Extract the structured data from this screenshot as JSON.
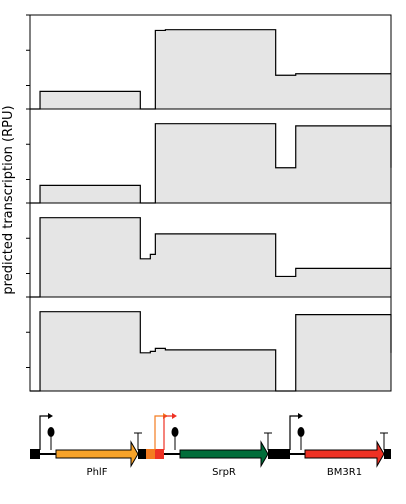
{
  "chart_data": {
    "type": "area",
    "ylabel": "predicted transcription (RPU)",
    "x": [
      0,
      1,
      2,
      3,
      4,
      5,
      6,
      7,
      8,
      9,
      10,
      11,
      12,
      13,
      14,
      15,
      16,
      17,
      18,
      19,
      20,
      21,
      22,
      23,
      24,
      25,
      26,
      27,
      28,
      29,
      30,
      31,
      32,
      33,
      34,
      35,
      36,
      37,
      38,
      39,
      40,
      41,
      42,
      43,
      44,
      45,
      46,
      47,
      48,
      49,
      50,
      51,
      52,
      53,
      54,
      55,
      56,
      57,
      58,
      59,
      60,
      61,
      62,
      63,
      64,
      65,
      66,
      67,
      68,
      69,
      70,
      71,
      72
    ],
    "series": [
      {
        "values": [
          0,
          0,
          0.24,
          0.24,
          0.24,
          0.24,
          0.24,
          0.24,
          0.24,
          0.24,
          0.24,
          0.24,
          0.24,
          0.24,
          0.24,
          0.24,
          0.24,
          0.24,
          0.24,
          0.24,
          0.24,
          0.24,
          0,
          0,
          0,
          1.07,
          1.07,
          1.08,
          1.08,
          1.08,
          1.08,
          1.08,
          1.08,
          1.08,
          1.08,
          1.08,
          1.08,
          1.08,
          1.08,
          1.08,
          1.08,
          1.08,
          1.08,
          1.08,
          1.08,
          1.08,
          1.08,
          1.08,
          1.08,
          0.46,
          0.46,
          0.46,
          0.46,
          0.48,
          0.48,
          0.48,
          0.48,
          0.48,
          0.48,
          0.48,
          0.48,
          0.48,
          0.48,
          0.48,
          0.48,
          0.48,
          0.48,
          0.48,
          0.48,
          0.48,
          0.48,
          0.48,
          0.48
        ]
      },
      {
        "values": [
          0,
          0,
          0.24,
          0.24,
          0.24,
          0.24,
          0.24,
          0.24,
          0.24,
          0.24,
          0.24,
          0.24,
          0.24,
          0.24,
          0.24,
          0.24,
          0.24,
          0.24,
          0.24,
          0.24,
          0.24,
          0.24,
          0,
          0,
          0,
          1.08,
          1.08,
          1.08,
          1.08,
          1.08,
          1.08,
          1.08,
          1.08,
          1.08,
          1.08,
          1.08,
          1.08,
          1.08,
          1.08,
          1.08,
          1.08,
          1.08,
          1.08,
          1.08,
          1.08,
          1.08,
          1.08,
          1.08,
          1.08,
          0.48,
          0.48,
          0.48,
          0.48,
          1.05,
          1.05,
          1.05,
          1.05,
          1.05,
          1.05,
          1.05,
          1.05,
          1.05,
          1.05,
          1.05,
          1.05,
          1.05,
          1.05,
          1.05,
          1.05,
          1.05,
          1.05,
          1.05,
          0.48
        ]
      },
      {
        "values": [
          0,
          0,
          1.08,
          1.08,
          1.08,
          1.08,
          1.08,
          1.08,
          1.08,
          1.08,
          1.08,
          1.08,
          1.08,
          1.08,
          1.08,
          1.08,
          1.08,
          1.08,
          1.08,
          1.08,
          1.08,
          1.08,
          0.52,
          0.52,
          0.58,
          0.86,
          0.86,
          0.86,
          0.86,
          0.86,
          0.86,
          0.86,
          0.86,
          0.86,
          0.86,
          0.86,
          0.86,
          0.86,
          0.86,
          0.86,
          0.86,
          0.86,
          0.86,
          0.86,
          0.86,
          0.86,
          0.86,
          0.86,
          0.86,
          0.28,
          0.28,
          0.28,
          0.28,
          0.39,
          0.39,
          0.39,
          0.39,
          0.39,
          0.39,
          0.39,
          0.39,
          0.39,
          0.39,
          0.39,
          0.39,
          0.39,
          0.39,
          0.39,
          0.39,
          0.39,
          0.39,
          0.39,
          0.39
        ]
      },
      {
        "values": [
          0,
          0,
          1.08,
          1.08,
          1.08,
          1.08,
          1.08,
          1.08,
          1.08,
          1.08,
          1.08,
          1.08,
          1.08,
          1.08,
          1.08,
          1.08,
          1.08,
          1.08,
          1.08,
          1.08,
          1.08,
          1.08,
          0.52,
          0.52,
          0.54,
          0.58,
          0.58,
          0.56,
          0.56,
          0.56,
          0.56,
          0.56,
          0.56,
          0.56,
          0.56,
          0.56,
          0.56,
          0.56,
          0.56,
          0.56,
          0.56,
          0.56,
          0.56,
          0.56,
          0.56,
          0.56,
          0.56,
          0.56,
          0.56,
          0,
          0,
          0,
          0,
          1.04,
          1.04,
          1.04,
          1.04,
          1.04,
          1.04,
          1.04,
          1.04,
          1.04,
          1.04,
          1.04,
          1.04,
          1.04,
          1.04,
          1.04,
          1.04,
          1.04,
          1.04,
          1.04,
          0.52
        ]
      }
    ],
    "ylim": [
      0,
      1.28
    ],
    "xlim": [
      0,
      72
    ],
    "genes": [
      {
        "name": "PhlF",
        "color": "#f7a32a"
      },
      {
        "name": "SrpR",
        "color": "#006d3a"
      },
      {
        "name": "BM3R1",
        "color": "#ee3124"
      }
    ],
    "colors": {
      "fill": "#e5e5e5",
      "line": "#000000",
      "insulator": "#f47c20",
      "insulator_red": "#ee3124",
      "backbone": "#000000"
    }
  }
}
